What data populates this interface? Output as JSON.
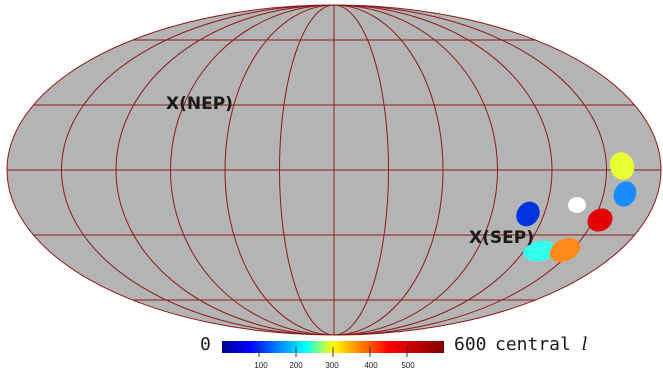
{
  "projection": "mollweide",
  "colors": {
    "map_fill": "#b4b4b4",
    "graticule": "#8b1a1a",
    "outline": "#8b1a1a",
    "colormap": [
      "#00008f",
      "#0000ff",
      "#00ffff",
      "#ffff00",
      "#ff0000",
      "#800000"
    ]
  },
  "markers": {
    "nep": {
      "label": "X(NEP)"
    },
    "sep": {
      "label": "X(SEP)"
    }
  },
  "fields": [
    {
      "name": "field-navy",
      "value": 30,
      "color": "#0033dd"
    },
    {
      "name": "field-cyan",
      "value": 250,
      "color": "#33ffee"
    },
    {
      "name": "field-orange",
      "value": 440,
      "color": "#ff8c1a"
    },
    {
      "name": "field-white",
      "value": null,
      "color": "#ffffff"
    },
    {
      "name": "field-red",
      "value": 540,
      "color": "#e00000"
    },
    {
      "name": "field-azure",
      "value": 160,
      "color": "#1a8cff"
    },
    {
      "name": "field-yellow",
      "value": 360,
      "color": "#eaff33"
    }
  ],
  "colorbar": {
    "min_label": "0",
    "max_label": "600",
    "title": "central",
    "title_variable": "l",
    "range": [
      0,
      600
    ],
    "ticks": [
      {
        "value": 100,
        "label": "100"
      },
      {
        "value": 200,
        "label": "200"
      },
      {
        "value": 300,
        "label": "300"
      },
      {
        "value": 400,
        "label": "400"
      },
      {
        "value": 500,
        "label": "500"
      }
    ]
  }
}
